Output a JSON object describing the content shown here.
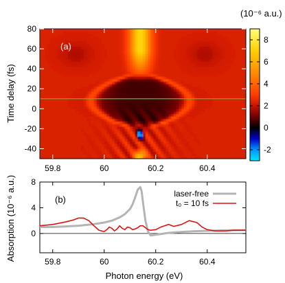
{
  "chart_data": [
    {
      "type": "heatmap",
      "panel_label": "(a)",
      "xlim": [
        59.75,
        60.55
      ],
      "ylim": [
        -50,
        80
      ],
      "x_ticks": [
        59.8,
        60,
        60.2,
        60.4
      ],
      "x_tick_labels": [
        "59.8",
        "60",
        "60.2",
        "60.4"
      ],
      "y_ticks": [
        -40,
        -20,
        0,
        20,
        40,
        60,
        80
      ],
      "y_tick_labels": [
        "-40",
        "-20",
        "0",
        "20",
        "40",
        "60",
        "80"
      ],
      "ylabel": "Time delay (fs)",
      "colorbar": {
        "title": "(10⁻⁶ a.u.)",
        "range": [
          -3,
          9
        ],
        "ticks": [
          -2,
          0,
          2,
          4,
          6,
          8
        ],
        "tick_labels": [
          "-2",
          "0",
          "2",
          "4",
          "6",
          "8"
        ],
        "palette_stops": [
          {
            "v": -3,
            "color": "#00e5ff"
          },
          {
            "v": -2,
            "color": "#0096ff"
          },
          {
            "v": -1,
            "color": "#0000c8"
          },
          {
            "v": 0,
            "color": "#000000"
          },
          {
            "v": 1,
            "color": "#6e0000"
          },
          {
            "v": 2,
            "color": "#c81400"
          },
          {
            "v": 3,
            "color": "#ff3c00"
          },
          {
            "v": 5,
            "color": "#ff8c00"
          },
          {
            "v": 7,
            "color": "#ffd000"
          },
          {
            "v": 9,
            "color": "#ffff80"
          }
        ]
      },
      "reference_line": {
        "y": 10,
        "color": "#2ecc2e"
      },
      "resonance_energy": 60.14
    },
    {
      "type": "line",
      "panel_label": "(b)",
      "xlabel": "Photon energy (eV)",
      "ylabel": "Absorption (10⁻⁶ a.u.)",
      "xlim": [
        59.75,
        60.55
      ],
      "ylim": [
        -3,
        8
      ],
      "x_ticks": [
        59.8,
        60,
        60.2,
        60.4
      ],
      "x_tick_labels": [
        "59.8",
        "60",
        "60.2",
        "60.4"
      ],
      "y_ticks": [
        0,
        4,
        8
      ],
      "y_tick_labels": [
        "0",
        "4",
        "8"
      ],
      "legend_position": "top-right",
      "series": [
        {
          "name": "laser-free",
          "color": "#b4b4b4",
          "x": [
            59.75,
            59.8,
            59.85,
            59.9,
            59.95,
            60.0,
            60.03,
            60.06,
            60.08,
            60.1,
            60.11,
            60.12,
            60.13,
            60.14,
            60.145,
            60.15,
            60.16,
            60.17,
            60.18,
            60.2,
            60.25,
            60.3,
            60.35,
            60.4,
            60.45,
            60.5,
            60.55
          ],
          "y": [
            1.0,
            1.0,
            1.1,
            1.2,
            1.4,
            1.7,
            2.0,
            2.5,
            3.0,
            3.8,
            4.5,
            5.6,
            6.8,
            7.2,
            6.6,
            5.0,
            2.0,
            0.3,
            -0.3,
            -0.2,
            0.1,
            0.25,
            0.35,
            0.42,
            0.47,
            0.5,
            0.52
          ]
        },
        {
          "name": "t₀ = 10 fs",
          "color": "#e01010",
          "x": [
            59.75,
            59.8,
            59.85,
            59.88,
            59.9,
            59.92,
            59.94,
            59.96,
            59.98,
            60.0,
            60.01,
            60.02,
            60.03,
            60.04,
            60.05,
            60.06,
            60.07,
            60.08,
            60.09,
            60.1,
            60.11,
            60.12,
            60.13,
            60.14,
            60.15,
            60.16,
            60.17,
            60.18,
            60.2,
            60.22,
            60.25,
            60.27,
            60.3,
            60.33,
            60.36,
            60.38,
            60.4,
            60.43,
            60.47,
            60.5,
            60.55
          ],
          "y": [
            1.2,
            1.4,
            1.8,
            2.1,
            2.4,
            2.4,
            2.0,
            1.2,
            0.5,
            0.3,
            0.6,
            1.0,
            0.8,
            0.4,
            0.7,
            1.2,
            0.8,
            0.6,
            1.0,
            0.9,
            0.6,
            0.7,
            0.9,
            1.2,
            1.2,
            0.9,
            0.6,
            0.5,
            0.6,
            1.0,
            1.4,
            1.1,
            1.4,
            2.0,
            1.7,
            1.0,
            0.6,
            0.4,
            0.4,
            0.5,
            0.5
          ]
        }
      ]
    }
  ]
}
